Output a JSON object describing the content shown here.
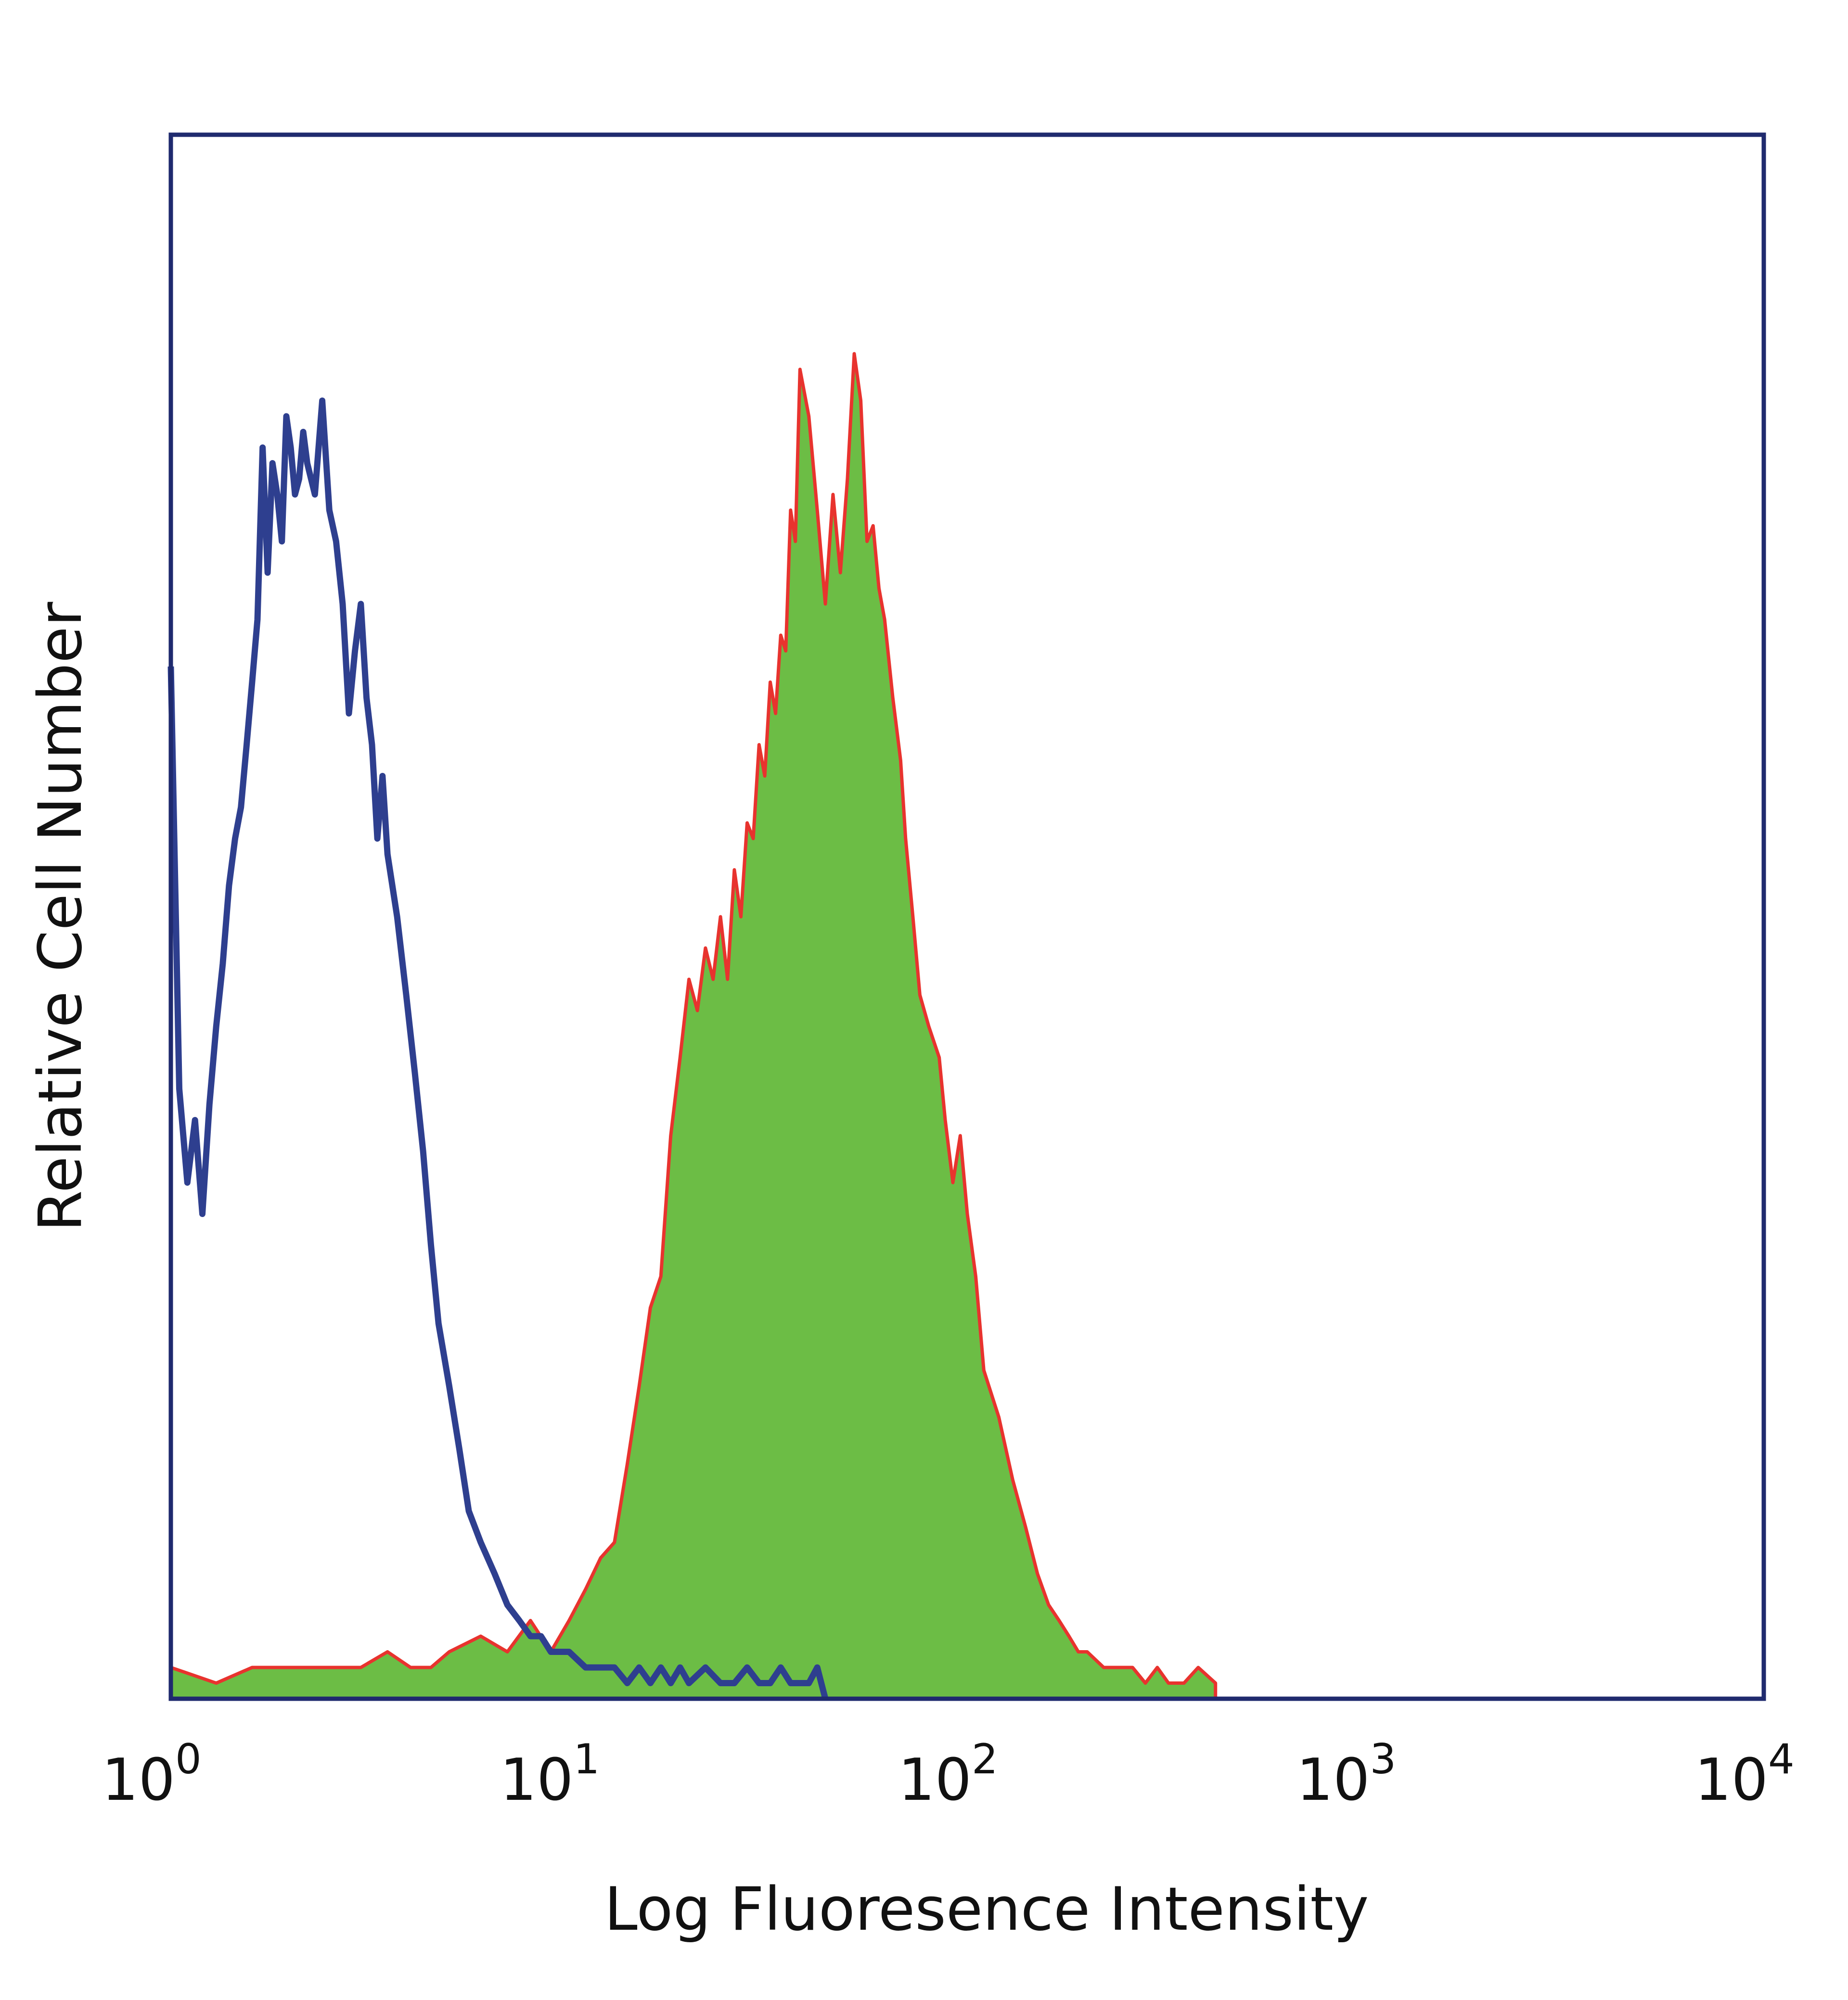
{
  "chart_data": {
    "type": "area",
    "xlabel": "Log Fluoresence Intensity",
    "ylabel": "Relative Cell Number",
    "x_scale": "log",
    "xlim": [
      1,
      10000
    ],
    "ylim": [
      0,
      1
    ],
    "x_ticks": [
      {
        "value": 1,
        "base": "10",
        "exp": "0"
      },
      {
        "value": 10,
        "base": "10",
        "exp": "1"
      },
      {
        "value": 100,
        "base": "10",
        "exp": "2"
      },
      {
        "value": 1000,
        "base": "10",
        "exp": "3"
      },
      {
        "value": 10000,
        "base": "10",
        "exp": "4"
      }
    ],
    "grid": false,
    "legend": "none",
    "series": [
      {
        "style": "filled",
        "fill": "#6cbd45",
        "stroke": "#e8332e",
        "x": [
          1.0,
          1.3,
          1.6,
          2.0,
          2.5,
          3.0,
          3.5,
          4.0,
          4.5,
          5.0,
          6.0,
          7.0,
          8.0,
          9.0,
          10.0,
          11.0,
          12.0,
          13.0,
          14.0,
          15.0,
          16.0,
          17.0,
          18.0,
          19.0,
          20.0,
          21.0,
          22.0,
          23.0,
          24.0,
          25.0,
          26.0,
          27.0,
          28.0,
          29.0,
          30.0,
          31.0,
          32.0,
          33.0,
          34.0,
          35.0,
          36.0,
          37.0,
          38.0,
          40.0,
          42.0,
          44.0,
          46.0,
          48.0,
          50.0,
          52.0,
          54.0,
          56.0,
          58.0,
          60.0,
          62.0,
          65.0,
          68.0,
          70.0,
          73.0,
          76.0,
          80.0,
          85.0,
          88.0,
          92.0,
          96.0,
          100.0,
          105.0,
          110.0,
          120.0,
          130.0,
          140.0,
          150.0,
          160.0,
          170.0,
          180.0,
          190.0,
          200.0,
          220.0,
          240.0,
          260.0,
          280.0,
          300.0,
          320.0,
          350.0,
          380.0,
          420.0
        ],
        "y": [
          0.02,
          0.01,
          0.02,
          0.02,
          0.02,
          0.02,
          0.03,
          0.02,
          0.02,
          0.03,
          0.04,
          0.03,
          0.05,
          0.03,
          0.05,
          0.07,
          0.09,
          0.1,
          0.15,
          0.2,
          0.25,
          0.27,
          0.36,
          0.41,
          0.46,
          0.44,
          0.48,
          0.46,
          0.5,
          0.46,
          0.53,
          0.5,
          0.56,
          0.55,
          0.61,
          0.59,
          0.65,
          0.63,
          0.68,
          0.67,
          0.76,
          0.74,
          0.85,
          0.82,
          0.76,
          0.7,
          0.77,
          0.72,
          0.78,
          0.86,
          0.83,
          0.74,
          0.75,
          0.71,
          0.69,
          0.64,
          0.6,
          0.55,
          0.5,
          0.45,
          0.43,
          0.41,
          0.37,
          0.33,
          0.36,
          0.31,
          0.27,
          0.21,
          0.18,
          0.14,
          0.11,
          0.08,
          0.06,
          0.05,
          0.04,
          0.03,
          0.03,
          0.02,
          0.02,
          0.02,
          0.01,
          0.02,
          0.01,
          0.01,
          0.02,
          0.01
        ]
      },
      {
        "style": "outline",
        "stroke": "#2e3f8f",
        "x": [
          1.0,
          1.05,
          1.1,
          1.15,
          1.2,
          1.25,
          1.3,
          1.35,
          1.4,
          1.45,
          1.5,
          1.55,
          1.6,
          1.65,
          1.7,
          1.75,
          1.8,
          1.85,
          1.9,
          1.95,
          2.0,
          2.05,
          2.1,
          2.15,
          2.2,
          2.3,
          2.4,
          2.5,
          2.6,
          2.7,
          2.8,
          2.9,
          3.0,
          3.1,
          3.2,
          3.3,
          3.4,
          3.5,
          3.7,
          3.9,
          4.1,
          4.3,
          4.5,
          4.7,
          5.0,
          5.3,
          5.6,
          6.0,
          6.5,
          7.0,
          7.5,
          8.0,
          8.5,
          9.0,
          9.5,
          10.0,
          11.0,
          12.0,
          13.0,
          14.0,
          15.0,
          16.0,
          17.0,
          18.0,
          19.0,
          20.0,
          22.0,
          24.0,
          26.0,
          28.0,
          30.0,
          32.0,
          34.0,
          36.0,
          38.0,
          40.0,
          42.0,
          44.0
        ],
        "y": [
          0.66,
          0.39,
          0.33,
          0.37,
          0.31,
          0.38,
          0.43,
          0.47,
          0.52,
          0.55,
          0.57,
          0.61,
          0.65,
          0.69,
          0.8,
          0.72,
          0.79,
          0.77,
          0.74,
          0.82,
          0.8,
          0.77,
          0.78,
          0.81,
          0.79,
          0.77,
          0.83,
          0.76,
          0.74,
          0.7,
          0.63,
          0.67,
          0.7,
          0.64,
          0.61,
          0.55,
          0.59,
          0.54,
          0.5,
          0.45,
          0.4,
          0.35,
          0.29,
          0.24,
          0.2,
          0.16,
          0.12,
          0.1,
          0.08,
          0.06,
          0.05,
          0.04,
          0.04,
          0.03,
          0.03,
          0.03,
          0.02,
          0.02,
          0.02,
          0.01,
          0.02,
          0.01,
          0.02,
          0.01,
          0.02,
          0.01,
          0.02,
          0.01,
          0.01,
          0.02,
          0.01,
          0.01,
          0.02,
          0.01,
          0.01,
          0.01,
          0.02,
          0.0
        ]
      }
    ]
  },
  "colors": {
    "axes": "#1f2a6e",
    "text": "#111111"
  }
}
